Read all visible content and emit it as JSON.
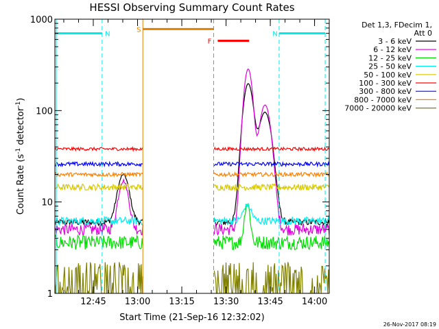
{
  "chart_data": {
    "type": "line",
    "title": "HESSI Observing Summary Count Rates",
    "xlabel": "Start Time (21-Sep-16 12:32:02)",
    "ylabel_main": "Count Rate (s",
    "ylabel_sup1": "-1",
    "ylabel_mid": " detector",
    "ylabel_sup2": "-1",
    "ylabel_end": ")",
    "yscale": "log",
    "ylim": [
      1,
      1000
    ],
    "xlim": [
      12.533,
      14.083
    ],
    "x_ticks": [
      {
        "value": 12.75,
        "label": "12:45"
      },
      {
        "value": 13.0,
        "label": "13:00"
      },
      {
        "value": 13.25,
        "label": "13:15"
      },
      {
        "value": 13.5,
        "label": "13:30"
      },
      {
        "value": 13.75,
        "label": "13:45"
      },
      {
        "value": 14.0,
        "label": "14:00"
      }
    ],
    "y_ticks": [
      {
        "value": 1,
        "label": "1"
      },
      {
        "value": 10,
        "label": "10"
      },
      {
        "value": 100,
        "label": "100"
      },
      {
        "value": 1000,
        "label": "1000"
      }
    ],
    "legend_header": [
      "Det 1,3, FDecim 1,",
      "Att 0"
    ],
    "segments": [
      [
        12.533,
        13.03
      ],
      [
        13.433,
        14.083
      ]
    ],
    "series": [
      {
        "name": "3 - 6 keV",
        "color": "#000000",
        "base": 6,
        "noise": 0.08,
        "peaks": [
          {
            "t": 13.625,
            "h": 190,
            "w": 0.035
          },
          {
            "t": 13.72,
            "h": 90,
            "w": 0.045
          },
          {
            "t": 12.92,
            "h": 14,
            "w": 0.04
          }
        ]
      },
      {
        "name": "6 - 12 keV",
        "color": "#e000e0",
        "base": 5,
        "noise": 0.15,
        "peaks": [
          {
            "t": 13.625,
            "h": 280,
            "w": 0.03
          },
          {
            "t": 13.72,
            "h": 110,
            "w": 0.04
          },
          {
            "t": 12.92,
            "h": 12,
            "w": 0.035
          }
        ]
      },
      {
        "name": "12 - 25 keV",
        "color": "#00e000",
        "base": 3.6,
        "noise": 0.18,
        "peaks": [
          {
            "t": 13.62,
            "h": 6,
            "w": 0.02
          }
        ]
      },
      {
        "name": "25 - 50 keV",
        "color": "#00f0f0",
        "base": 6.2,
        "noise": 0.1,
        "peaks": [
          {
            "t": 13.62,
            "h": 3,
            "w": 0.03
          }
        ]
      },
      {
        "name": "50 - 100 keV",
        "color": "#d8c800",
        "base": 14.5,
        "noise": 0.08,
        "peaks": []
      },
      {
        "name": "100 - 300 keV",
        "color": "#ff0000",
        "base": 38,
        "noise": 0.04,
        "peaks": []
      },
      {
        "name": "300 - 800 keV",
        "color": "#0000ff",
        "base": 26,
        "noise": 0.05,
        "peaks": []
      },
      {
        "name": "800 - 7000 keV",
        "color": "#ff8000",
        "base": 20,
        "noise": 0.05,
        "peaks": []
      },
      {
        "name": "7000 - 20000 keV",
        "color": "#808000",
        "base": 1.3,
        "noise": 0.3,
        "peaks": []
      }
    ],
    "annotations": [
      {
        "label": "N",
        "color": "#00e8e8",
        "x": 12.8,
        "bar_from": 12.533,
        "bar_to": 12.8,
        "bar_y": 700,
        "dashed_line": 12.8
      },
      {
        "label": "N",
        "color": "#00e8e8",
        "x": 13.8,
        "bar_from": 13.8,
        "bar_to": 14.06,
        "bar_y": 700,
        "dashed_line": 13.8
      },
      {
        "label": "S",
        "color": "#e08000",
        "x": 13.03,
        "bar_from": 13.03,
        "bar_to": 13.43,
        "bar_y": 780,
        "dashed_line": 13.43
      },
      {
        "label": "F",
        "color": "#ff0000",
        "x": 13.43,
        "bar_from": 13.453,
        "bar_to": 13.63,
        "bar_y": 580,
        "dashed_line": null
      }
    ],
    "footer": "26-Nov-2017 08:19"
  }
}
